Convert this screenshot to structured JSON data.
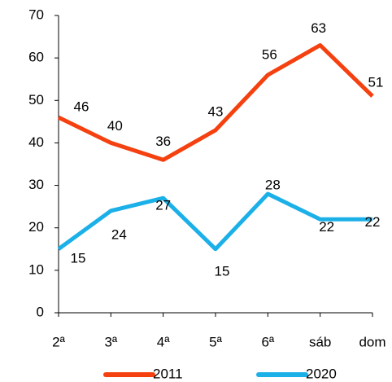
{
  "chart_data": {
    "type": "line",
    "categories": [
      "2ª",
      "3ª",
      "4ª",
      "5ª",
      "6ª",
      "sáb",
      "dom"
    ],
    "series": [
      {
        "name": "2011",
        "color": "#f5400f",
        "values": [
          46,
          40,
          36,
          43,
          56,
          63,
          51
        ]
      },
      {
        "name": "2020",
        "color": "#1cb0e8",
        "values": [
          15,
          24,
          27,
          15,
          28,
          22,
          22
        ]
      }
    ],
    "ylim": [
      0,
      70
    ],
    "yticks": [
      0,
      10,
      20,
      30,
      40,
      50,
      60,
      70
    ],
    "legend": "bottom",
    "grid": false
  }
}
